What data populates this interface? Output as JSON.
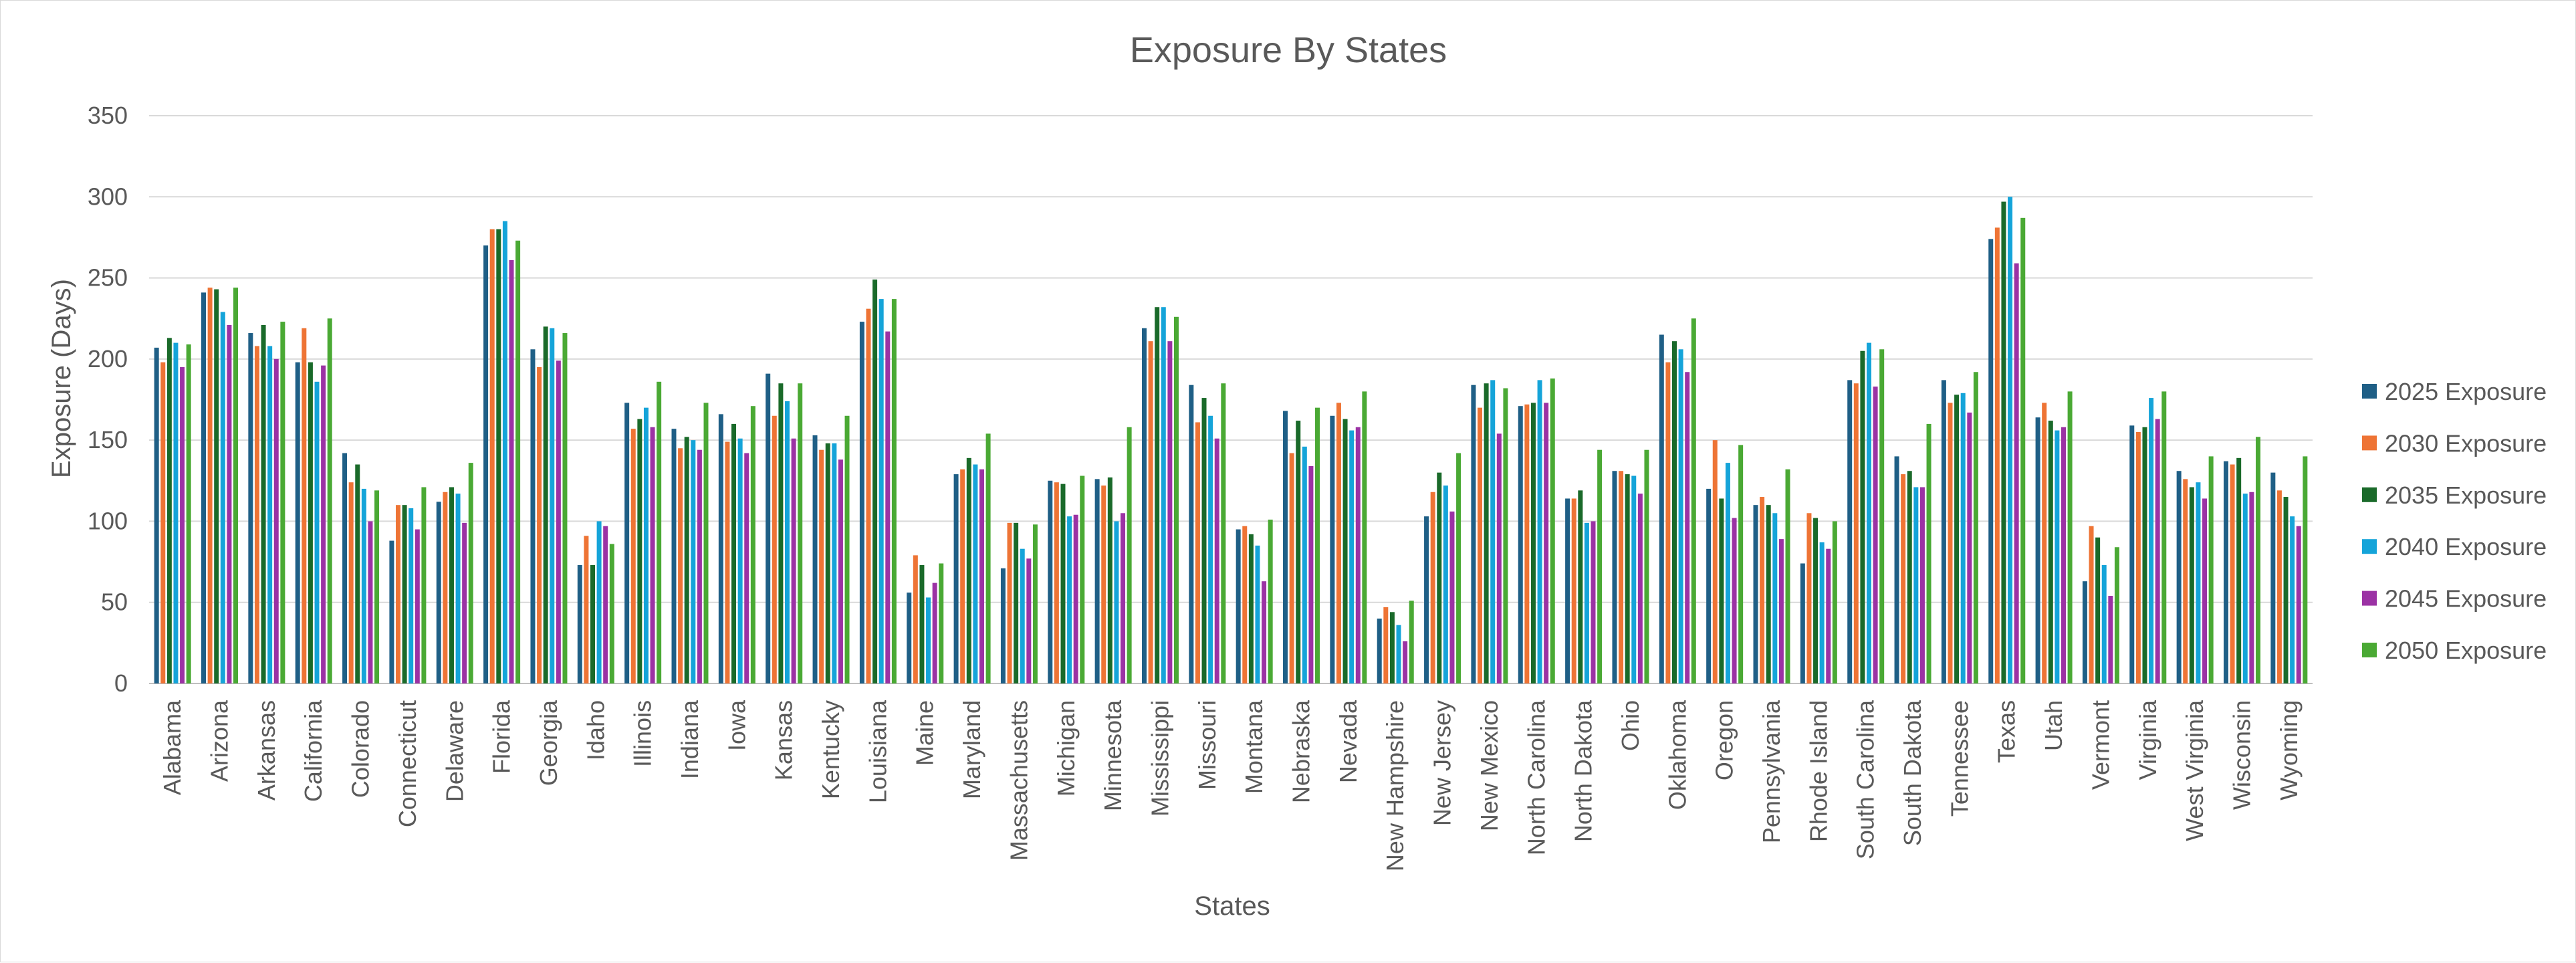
{
  "chart_data": {
    "type": "bar",
    "title": "Exposure By States",
    "xlabel": "States",
    "ylabel": "Exposure (Days)",
    "ylim": [
      0,
      350
    ],
    "yticks": [
      0,
      50,
      100,
      150,
      200,
      250,
      300,
      350
    ],
    "grid": true,
    "legend_position": "right",
    "categories": [
      "Alabama",
      "Arizona",
      "Arkansas",
      "California",
      "Colorado",
      "Connecticut",
      "Delaware",
      "Florida",
      "Georgia",
      "Idaho",
      "Illinois",
      "Indiana",
      "Iowa",
      "Kansas",
      "Kentucky",
      "Louisiana",
      "Maine",
      "Maryland",
      "Massachusetts",
      "Michigan",
      "Minnesota",
      "Mississippi",
      "Missouri",
      "Montana",
      "Nebraska",
      "Nevada",
      "New Hampshire",
      "New Jersey",
      "New Mexico",
      "North Carolina",
      "North Dakota",
      "Ohio",
      "Oklahoma",
      "Oregon",
      "Pennsylvania",
      "Rhode Island",
      "South Carolina",
      "South Dakota",
      "Tennessee",
      "Texas",
      "Utah",
      "Vermont",
      "Virginia",
      "West Virginia",
      "Wisconsin",
      "Wyoming"
    ],
    "series": [
      {
        "name": "2025 Exposure",
        "color": "#1f5f86",
        "values": [
          207,
          241,
          216,
          198,
          142,
          88,
          112,
          270,
          206,
          73,
          173,
          157,
          166,
          191,
          153,
          223,
          56,
          129,
          71,
          125,
          126,
          219,
          184,
          95,
          168,
          165,
          40,
          103,
          184,
          171,
          114,
          131,
          215,
          120,
          110,
          74,
          187,
          140,
          187,
          274,
          164,
          63,
          159,
          131,
          137,
          130
        ]
      },
      {
        "name": "2030 Exposure",
        "color": "#ee7435",
        "values": [
          198,
          244,
          208,
          219,
          124,
          110,
          118,
          280,
          195,
          91,
          157,
          145,
          149,
          165,
          144,
          231,
          79,
          132,
          99,
          124,
          122,
          211,
          161,
          97,
          142,
          173,
          47,
          118,
          170,
          172,
          114,
          131,
          198,
          150,
          115,
          105,
          185,
          129,
          173,
          281,
          173,
          97,
          155,
          126,
          135,
          119
        ]
      },
      {
        "name": "2035 Exposure",
        "color": "#1a6a2a",
        "values": [
          213,
          243,
          221,
          198,
          135,
          110,
          121,
          280,
          220,
          73,
          163,
          152,
          160,
          185,
          148,
          249,
          73,
          139,
          99,
          123,
          127,
          232,
          176,
          92,
          162,
          163,
          44,
          130,
          185,
          173,
          119,
          129,
          211,
          114,
          110,
          102,
          205,
          131,
          178,
          297,
          162,
          90,
          158,
          121,
          139,
          115
        ]
      },
      {
        "name": "2040 Exposure",
        "color": "#15a4d9",
        "values": [
          210,
          229,
          208,
          186,
          120,
          108,
          117,
          285,
          219,
          100,
          170,
          150,
          151,
          174,
          148,
          237,
          53,
          135,
          83,
          103,
          100,
          232,
          165,
          85,
          146,
          156,
          36,
          122,
          187,
          187,
          99,
          128,
          206,
          136,
          105,
          87,
          210,
          121,
          179,
          300,
          156,
          73,
          176,
          124,
          117,
          103
        ]
      },
      {
        "name": "2045 Exposure",
        "color": "#9b32a4",
        "values": [
          195,
          221,
          200,
          196,
          100,
          95,
          99,
          261,
          199,
          97,
          158,
          144,
          142,
          151,
          138,
          217,
          62,
          132,
          77,
          104,
          105,
          211,
          151,
          63,
          134,
          158,
          26,
          106,
          154,
          173,
          100,
          117,
          192,
          102,
          89,
          83,
          183,
          121,
          167,
          259,
          158,
          54,
          163,
          114,
          118,
          97
        ]
      },
      {
        "name": "2050 Exposure",
        "color": "#4aa934",
        "values": [
          209,
          244,
          223,
          225,
          119,
          121,
          136,
          273,
          216,
          86,
          186,
          173,
          171,
          185,
          165,
          237,
          74,
          154,
          98,
          128,
          158,
          226,
          185,
          101,
          170,
          180,
          51,
          142,
          182,
          188,
          144,
          144,
          225,
          147,
          132,
          100,
          206,
          160,
          192,
          287,
          180,
          84,
          180,
          140,
          152,
          140
        ]
      }
    ]
  }
}
